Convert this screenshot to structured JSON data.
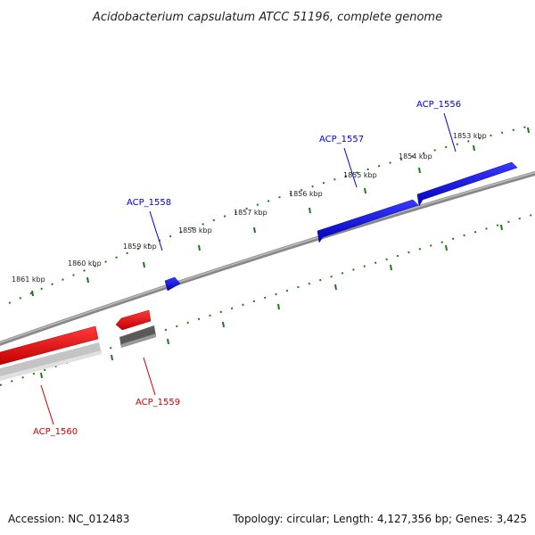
{
  "title": "Acidobacterium capsulatum ATCC 51196, complete genome",
  "footer": {
    "accession": "Accession: NC_012483",
    "topology": "Topology: circular; Length: 4,127,356 bp; Genes: 3,425"
  },
  "colors": {
    "forward_gene": "#0000ee",
    "reverse_gene": "#ee0000",
    "gray_gene": "#666666",
    "light_gray_gene": "#bbbbbb",
    "backbone": "#777777",
    "tick": "#1a7a1a"
  },
  "ticks": [
    "1861 kbp",
    "1860 kbp",
    "1859 kbp",
    "1858 kbp",
    "1857 kbp",
    "1856 kbp",
    "1855 kbp",
    "1854 kbp",
    "1853 kbp"
  ],
  "genes": [
    {
      "label": "ACP_1556",
      "strand": "forward"
    },
    {
      "label": "ACP_1557",
      "strand": "forward"
    },
    {
      "label": "ACP_1558",
      "strand": "forward"
    },
    {
      "label": "ACP_1559",
      "strand": "reverse"
    },
    {
      "label": "ACP_1560",
      "strand": "reverse"
    }
  ]
}
